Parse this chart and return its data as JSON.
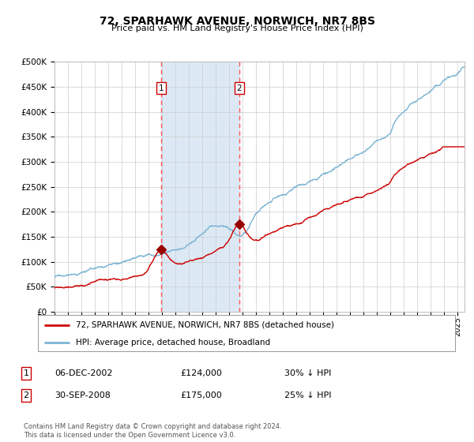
{
  "title": "72, SPARHAWK AVENUE, NORWICH, NR7 8BS",
  "subtitle": "Price paid vs. HM Land Registry's House Price Index (HPI)",
  "hpi_color": "#7ab3d4",
  "price_color": "#cc0000",
  "marker_color": "#990000",
  "shading_color": "#dce9f5",
  "vline_color": "#ff5555",
  "background_color": "#ffffff",
  "grid_color": "#cccccc",
  "ylim": [
    0,
    500000
  ],
  "yticks": [
    0,
    50000,
    100000,
    150000,
    200000,
    250000,
    300000,
    350000,
    400000,
    450000,
    500000
  ],
  "ytick_labels": [
    "£0",
    "£50K",
    "£100K",
    "£150K",
    "£200K",
    "£250K",
    "£300K",
    "£350K",
    "£400K",
    "£450K",
    "£500K"
  ],
  "legend_entry1": "72, SPARHAWK AVENUE, NORWICH, NR7 8BS (detached house)",
  "legend_entry2": "HPI: Average price, detached house, Broadland",
  "sale1_x": 2002.92,
  "sale1_y": 124000,
  "sale2_x": 2008.75,
  "sale2_y": 175000,
  "footnote": "Contains HM Land Registry data © Crown copyright and database right 2024.\nThis data is licensed under the Open Government Licence v3.0.",
  "xmin": 1995.0,
  "xmax": 2025.5,
  "anno1_date": "06-DEC-2002",
  "anno1_price": "£124,000",
  "anno1_pct": "30% ↓ HPI",
  "anno2_date": "30-SEP-2008",
  "anno2_price": "£175,000",
  "anno2_pct": "25% ↓ HPI"
}
